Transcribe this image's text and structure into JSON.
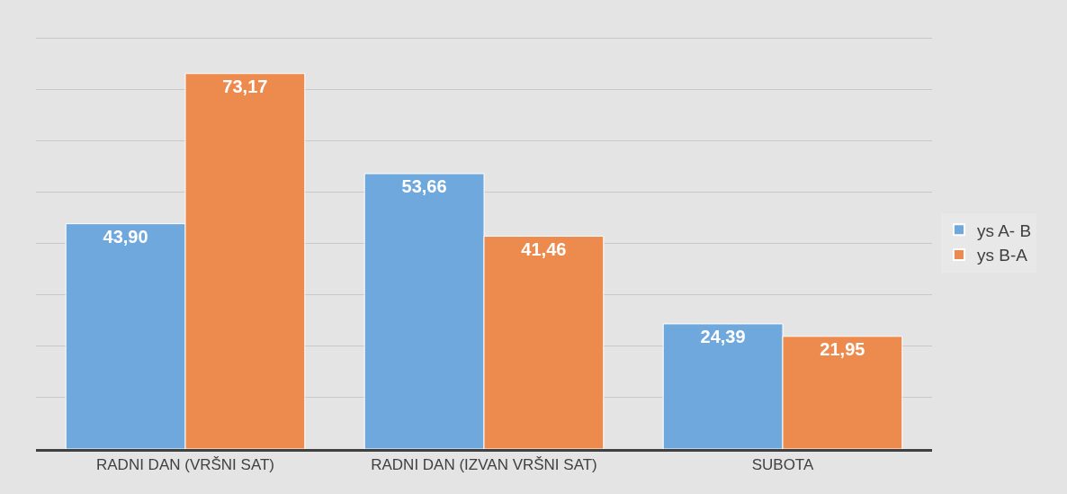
{
  "chart_data": {
    "type": "bar",
    "categories": [
      "RADNI DAN (VRŠNI SAT)",
      "RADNI DAN (IZVAN VRŠNI SAT)",
      "SUBOTA"
    ],
    "series": [
      {
        "name": "ys A- B",
        "color": "#6fa8dc",
        "values": [
          43.9,
          53.66,
          24.39
        ],
        "value_labels": [
          "43,90",
          "53,66",
          "24,39"
        ]
      },
      {
        "name": "ys B-A",
        "color": "#ed8b4f",
        "values": [
          73.17,
          41.46,
          21.95
        ],
        "value_labels": [
          "73,17",
          "41,46",
          "21,95"
        ]
      }
    ],
    "tick_labels": "x",
    "grid": "y",
    "legend": "right"
  }
}
